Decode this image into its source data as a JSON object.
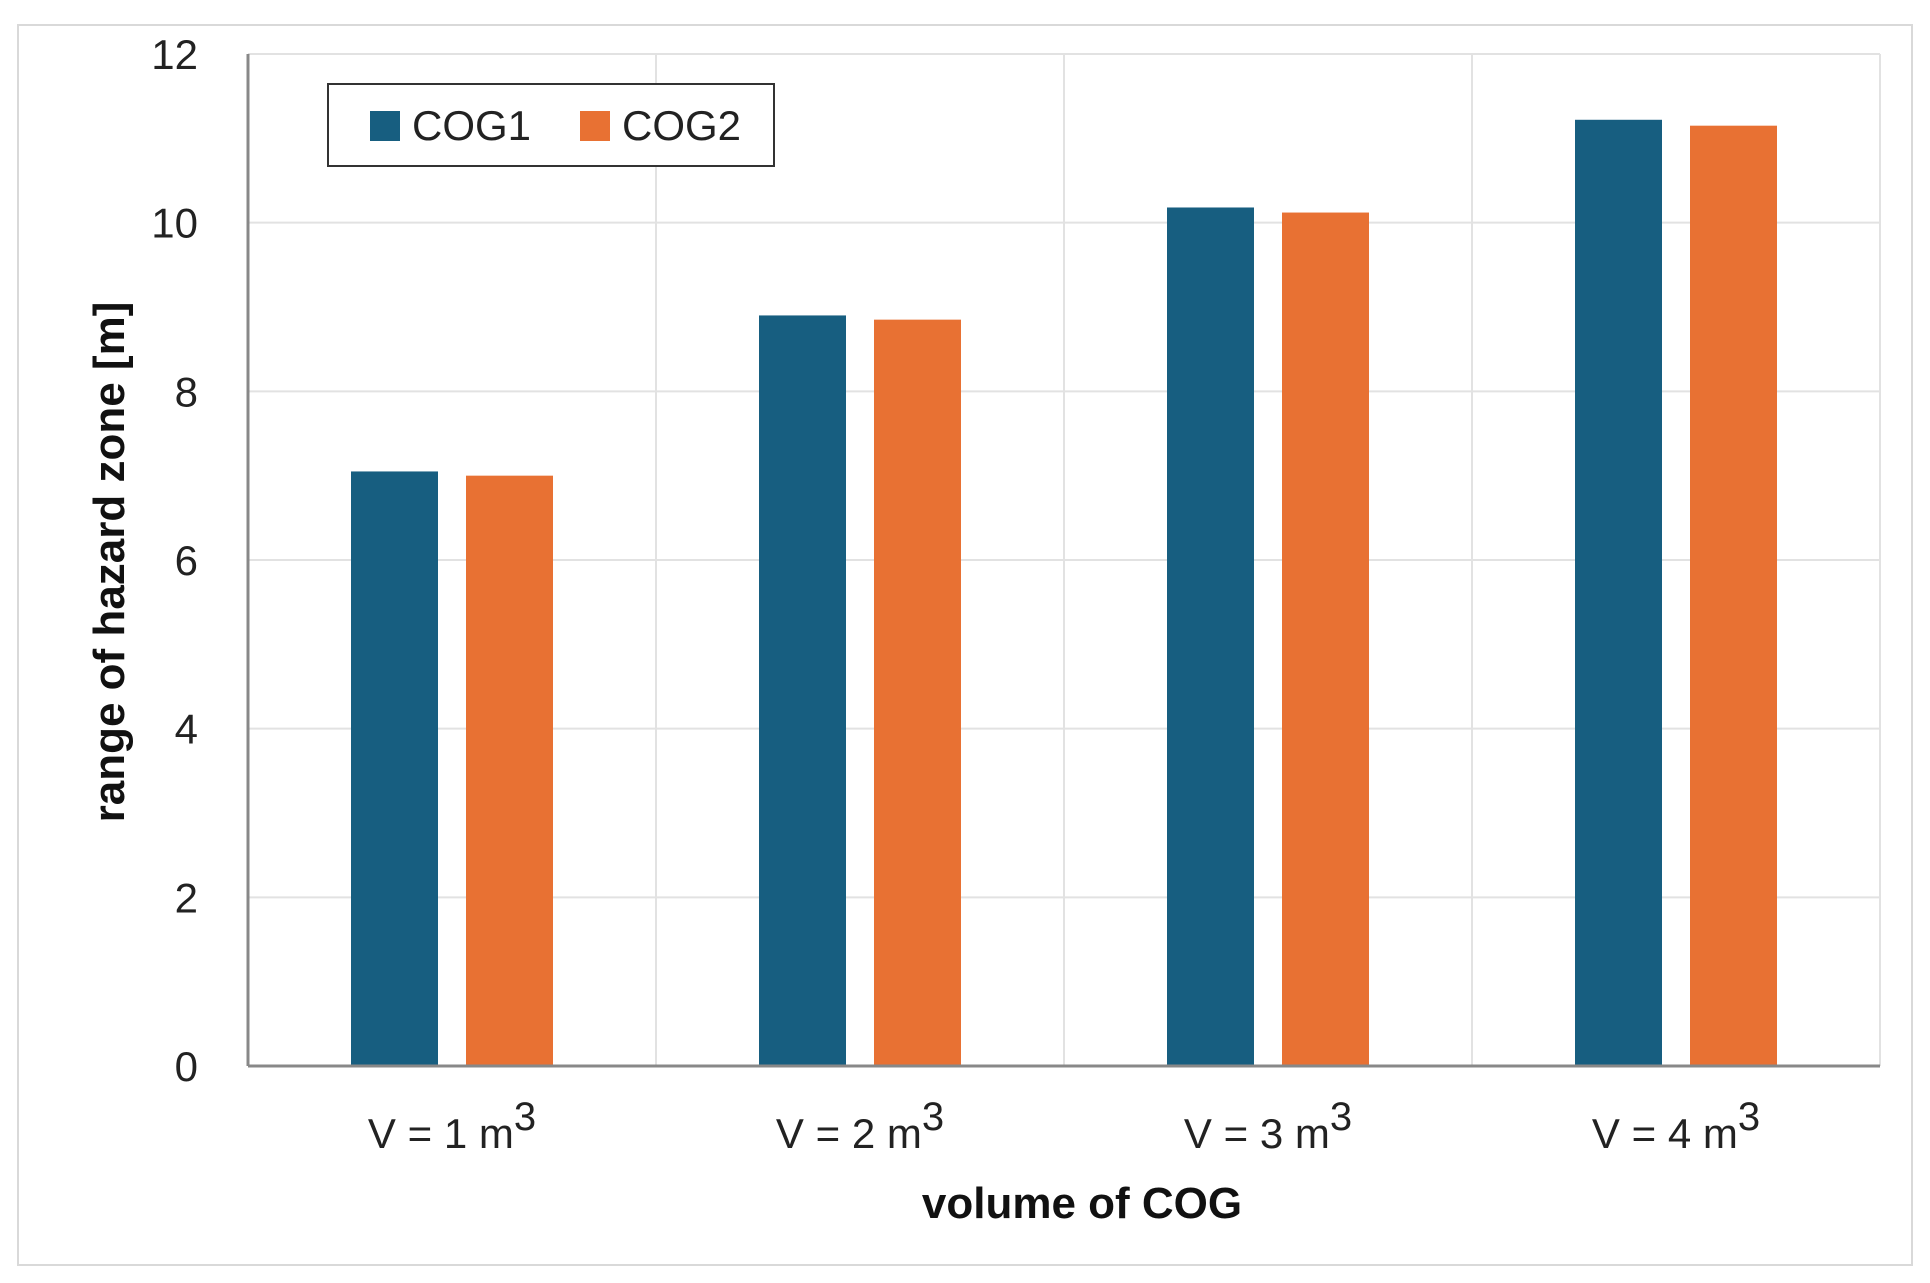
{
  "chart_data": {
    "type": "bar",
    "title": "",
    "xlabel": "volume of COG",
    "ylabel": "range of hazard zone [m]",
    "categories": [
      {
        "prefix": "V = ",
        "number": "1",
        "unit": " m",
        "sup": "3"
      },
      {
        "prefix": "V = ",
        "number": "2",
        "unit": " m",
        "sup": "3"
      },
      {
        "prefix": "V = ",
        "number": "3",
        "unit": " m",
        "sup": "3"
      },
      {
        "prefix": "V = ",
        "number": "4",
        "unit": " m",
        "sup": "3"
      }
    ],
    "series": [
      {
        "name": "COG1",
        "color": "#175e80",
        "values": [
          7.05,
          8.9,
          10.18,
          11.22
        ]
      },
      {
        "name": "COG2",
        "color": "#e87133",
        "values": [
          7.0,
          8.85,
          10.12,
          11.15
        ]
      }
    ],
    "ylim": [
      0,
      12
    ],
    "yticks": [
      "0",
      "2",
      "4",
      "6",
      "8",
      "10",
      "12"
    ],
    "grid": true,
    "legend_position": "top-left"
  }
}
